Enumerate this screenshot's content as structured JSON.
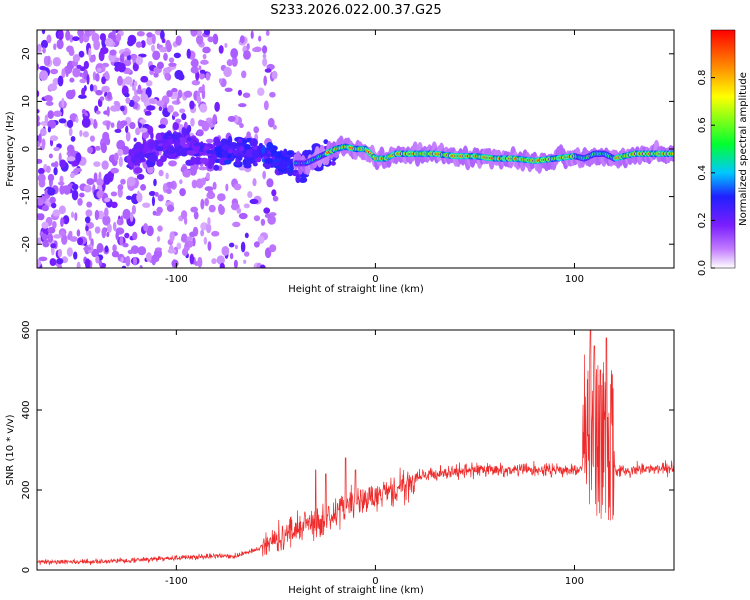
{
  "title": "S233.2026.022.00.37.G25",
  "chart_data": [
    {
      "type": "heatmap",
      "xlabel": "Height of straight line (km)",
      "ylabel": "Frequency (Hz)",
      "xlim": [
        -170,
        150
      ],
      "ylim": [
        -25,
        25
      ],
      "xticks": [
        -100,
        0,
        100
      ],
      "yticks": [
        -20,
        -10,
        0,
        10,
        20
      ],
      "colorbar": {
        "label": "Normalized spectral amplitude",
        "ticks": [
          0.0,
          0.2,
          0.4,
          0.6,
          0.8
        ],
        "range": [
          0,
          1
        ],
        "colors": [
          "#ffffff",
          "#9b30ff",
          "#2020ff",
          "#00e0ff",
          "#00ff30",
          "#ffff00",
          "#ff8000",
          "#ff0000"
        ]
      },
      "ridge": {
        "x": [
          -120,
          -110,
          -100,
          -90,
          -80,
          -70,
          -60,
          -50,
          -45,
          -40,
          -35,
          -30,
          -25,
          -20,
          -15,
          -10,
          -5,
          0,
          5,
          10,
          20,
          30,
          40,
          50,
          60,
          70,
          80,
          90,
          100,
          105,
          110,
          115,
          120,
          130,
          140,
          150
        ],
        "y": [
          -2,
          0,
          1,
          0,
          -1,
          0,
          -1,
          -2,
          -2.5,
          -3,
          -3,
          -2,
          -1,
          0,
          0.5,
          0,
          0,
          -2,
          -2,
          -1,
          -1,
          -1,
          -1.5,
          -1.5,
          -2,
          -2,
          -2.5,
          -2,
          -1.5,
          -2,
          -1,
          -1,
          -2,
          -1,
          -1,
          -1
        ]
      }
    },
    {
      "type": "line",
      "xlabel": "Height of straight line (km)",
      "ylabel": "SNR (10 * v/v)",
      "xlim": [
        -170,
        150
      ],
      "ylim": [
        0,
        600
      ],
      "xticks": [
        -100,
        0,
        100
      ],
      "yticks": [
        0,
        200,
        400,
        600
      ],
      "color": "#ee2a2a",
      "baseline": {
        "x": [
          -170,
          -150,
          -120,
          -100,
          -80,
          -70,
          -60,
          -50,
          -40,
          -35,
          -30,
          -20,
          -10,
          0,
          10,
          20,
          30,
          50,
          70,
          100,
          107,
          110,
          112,
          115,
          118,
          120,
          130,
          150
        ],
        "y": [
          20,
          20,
          25,
          30,
          35,
          35,
          50,
          80,
          100,
          120,
          110,
          140,
          170,
          180,
          200,
          230,
          240,
          250,
          250,
          250,
          250,
          300,
          150,
          200,
          120,
          250,
          250,
          255
        ]
      },
      "spikes": [
        {
          "x": 108,
          "y": 600
        },
        {
          "x": 110,
          "y": 560
        },
        {
          "x": 113,
          "y": 500
        },
        {
          "x": 116,
          "y": 580
        },
        {
          "x": -30,
          "y": 250
        },
        {
          "x": -25,
          "y": 240
        },
        {
          "x": -15,
          "y": 280
        },
        {
          "x": -10,
          "y": 250
        }
      ]
    }
  ]
}
